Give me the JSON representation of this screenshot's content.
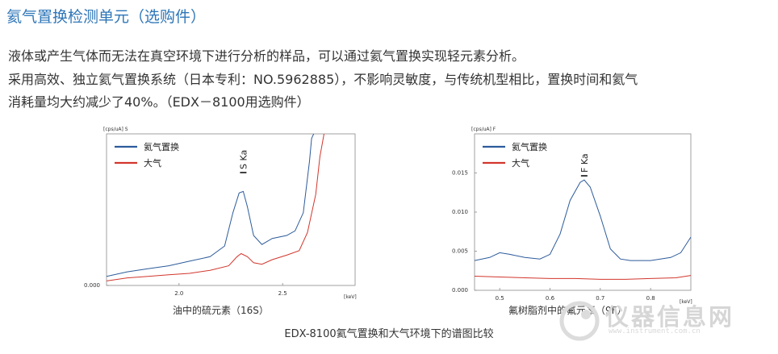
{
  "page": {
    "title": "氦气置换检测单元（选购件）",
    "para1": "液体或产生气体而无法在真空环境下进行分析的样品，可以通过氦气置换实现轻元素分析。",
    "para2_line1": "采用高效、独立氦气置换系统（日本专利：NO.5962885），不影响灵敏度，与传统机型相比，置换时间和氦气",
    "para2_line2": "消耗量均大约减少了40%。（EDX－8100用选购件）",
    "caption": "EDX-8100氦气置换和大气环境下的谱图比较",
    "watermark": "仪器信息网",
    "watermark_sub": "www.instrument.com.cn"
  },
  "colors": {
    "helium": "#2c5b9b",
    "air": "#d2362c",
    "title": "#2e76b8"
  },
  "chart_data": [
    {
      "type": "line",
      "caption": "油中的硫元素（16S）",
      "ylabel": "[cps/uA] S",
      "xlabel": "[keV]",
      "xlim": [
        1.65,
        2.85
      ],
      "ylim": [
        0,
        1
      ],
      "xticks": [
        {
          "v": 2.0,
          "label": "2.0"
        },
        {
          "v": 2.5,
          "label": "2.5"
        }
      ],
      "yticks": [
        {
          "v": 0,
          "label": "0.000"
        }
      ],
      "peak_label": "S Ka",
      "peak_x": 2.31,
      "series": [
        {
          "name": "氦气置换",
          "color": "#2c5b9b",
          "x": [
            1.65,
            1.75,
            1.85,
            1.95,
            2.05,
            2.15,
            2.22,
            2.26,
            2.29,
            2.31,
            2.33,
            2.36,
            2.4,
            2.45,
            2.52,
            2.56,
            2.6,
            2.63,
            2.64,
            2.65
          ],
          "y": [
            0.06,
            0.09,
            0.11,
            0.13,
            0.16,
            0.19,
            0.26,
            0.48,
            0.61,
            0.62,
            0.52,
            0.33,
            0.27,
            0.31,
            0.33,
            0.36,
            0.48,
            0.82,
            0.97,
            1.0
          ]
        },
        {
          "name": "大气",
          "color": "#d2362c",
          "x": [
            1.65,
            1.75,
            1.85,
            1.95,
            2.05,
            2.15,
            2.24,
            2.28,
            2.3,
            2.33,
            2.36,
            2.4,
            2.45,
            2.52,
            2.58,
            2.62,
            2.66,
            2.68,
            2.7
          ],
          "y": [
            0.03,
            0.05,
            0.06,
            0.07,
            0.08,
            0.1,
            0.13,
            0.19,
            0.21,
            0.19,
            0.15,
            0.14,
            0.17,
            0.2,
            0.23,
            0.35,
            0.6,
            0.85,
            1.0
          ]
        }
      ]
    },
    {
      "type": "line",
      "caption": "氟树脂剂中的氟元素（9F）",
      "ylabel": "[cps/uA] F",
      "xlabel": "[keV]",
      "xlim": [
        0.45,
        0.88
      ],
      "ylim": [
        0,
        0.02
      ],
      "xticks": [
        {
          "v": 0.5,
          "label": "0.5"
        },
        {
          "v": 0.6,
          "label": "0.6"
        },
        {
          "v": 0.7,
          "label": "0.7"
        },
        {
          "v": 0.8,
          "label": "0.8"
        }
      ],
      "yticks": [
        {
          "v": 0.015,
          "label": "0.015"
        },
        {
          "v": 0.01,
          "label": "0.010"
        },
        {
          "v": 0.005,
          "label": "0.005"
        },
        {
          "v": 0,
          "label": "0.000"
        }
      ],
      "peak_label": "F Ka",
      "peak_x": 0.668,
      "series": [
        {
          "name": "氦气置换",
          "color": "#2c5b9b",
          "x": [
            0.45,
            0.48,
            0.5,
            0.52,
            0.55,
            0.58,
            0.6,
            0.62,
            0.64,
            0.66,
            0.668,
            0.68,
            0.7,
            0.72,
            0.74,
            0.76,
            0.8,
            0.84,
            0.86,
            0.88
          ],
          "y": [
            0.0038,
            0.0042,
            0.0048,
            0.0046,
            0.0042,
            0.004,
            0.0046,
            0.0072,
            0.0115,
            0.0138,
            0.0141,
            0.0132,
            0.0095,
            0.0053,
            0.004,
            0.0038,
            0.0038,
            0.0042,
            0.0048,
            0.0068
          ]
        },
        {
          "name": "大气",
          "color": "#d2362c",
          "x": [
            0.45,
            0.5,
            0.55,
            0.6,
            0.65,
            0.7,
            0.75,
            0.8,
            0.85,
            0.88
          ],
          "y": [
            0.0018,
            0.0017,
            0.0016,
            0.0015,
            0.0015,
            0.0014,
            0.0014,
            0.0015,
            0.0016,
            0.0019
          ]
        }
      ]
    }
  ]
}
